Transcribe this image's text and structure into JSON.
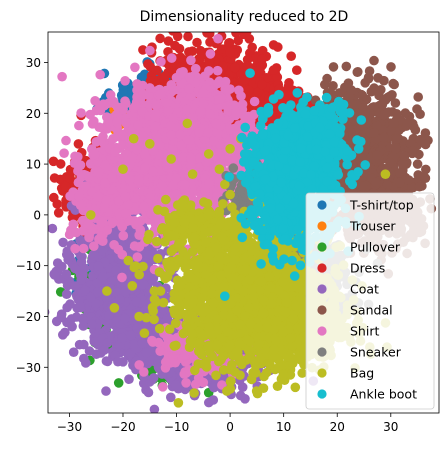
{
  "chart_data": {
    "type": "scatter",
    "title": "Dimensionality reduced to 2D",
    "xlabel": "",
    "ylabel": "",
    "xlim": [
      -34,
      39
    ],
    "ylim": [
      -39,
      36
    ],
    "x_ticks": [
      -30,
      -20,
      -10,
      0,
      10,
      20,
      30
    ],
    "y_ticks": [
      30,
      20,
      10,
      0,
      -10,
      -20,
      -30
    ],
    "x_tick_labels": [
      "−30",
      "−20",
      "−10",
      "0",
      "10",
      "20",
      "30"
    ],
    "y_tick_labels": [
      "30",
      "20",
      "10",
      "0",
      "−10",
      "−20",
      "−30"
    ],
    "grid": false,
    "legend_position": "lower-right",
    "series": [
      {
        "name": "T-shirt/top",
        "color": "#1f77b4",
        "clusters": [
          {
            "cx": -15,
            "cy": 22,
            "sx": 3.5,
            "sy": 3.0,
            "n": 300
          },
          {
            "cx": -21,
            "cy": -12,
            "sx": 3.0,
            "sy": 4.0,
            "n": 140
          }
        ],
        "points": [
          [
            -15,
            26
          ],
          [
            -12,
            25
          ],
          [
            -20,
            -16
          ],
          [
            -24,
            -14
          ]
        ]
      },
      {
        "name": "Trouser",
        "color": "#ff7f0e",
        "clusters": [
          {
            "cx": -10,
            "cy": 2,
            "sx": 1.5,
            "sy": 1.2,
            "n": 25
          },
          {
            "cx": -20,
            "cy": 18,
            "sx": 1.2,
            "sy": 1.2,
            "n": 10
          }
        ],
        "points": [
          [
            -10,
            2
          ],
          [
            -8,
            3
          ],
          [
            -20,
            18
          ]
        ]
      },
      {
        "name": "Pullover",
        "color": "#2ca02c",
        "clusters": [
          {
            "cx": -20,
            "cy": -15,
            "sx": 4.0,
            "sy": 5.5,
            "n": 250
          },
          {
            "cx": -11,
            "cy": -29,
            "sx": 3.0,
            "sy": 2.5,
            "n": 80
          }
        ],
        "points": [
          [
            -28,
            -12
          ],
          [
            -25,
            -11
          ],
          [
            -19,
            -27
          ],
          [
            -4,
            -35
          ],
          [
            0,
            -35
          ]
        ]
      },
      {
        "name": "Dress",
        "color": "#d62728",
        "clusters": [
          {
            "cx": -3,
            "cy": 24,
            "sx": 6.0,
            "sy": 5.0,
            "n": 700
          },
          {
            "cx": -27,
            "cy": 5,
            "sx": 2.2,
            "sy": 3.5,
            "n": 220
          },
          {
            "cx": 6,
            "cy": 21,
            "sx": 5.0,
            "sy": 3.5,
            "n": 250
          }
        ],
        "points": [
          [
            -28,
            11
          ],
          [
            -29,
            2
          ],
          [
            -24,
            13
          ],
          [
            11,
            26
          ],
          [
            0,
            32
          ],
          [
            -4,
            30
          ]
        ]
      },
      {
        "name": "Coat",
        "color": "#9467bd",
        "clusters": [
          {
            "cx": -21,
            "cy": -12,
            "sx": 4.5,
            "sy": 7.0,
            "n": 750
          },
          {
            "cx": -5,
            "cy": -28,
            "sx": 5.5,
            "sy": 3.5,
            "n": 450
          },
          {
            "cx": -16,
            "cy": -24,
            "sx": 3.5,
            "sy": 3.0,
            "n": 250
          }
        ],
        "points": [
          [
            -29,
            -14
          ],
          [
            -28,
            -18
          ],
          [
            -3,
            -34
          ],
          [
            -13,
            -30
          ],
          [
            -8,
            -32
          ]
        ]
      },
      {
        "name": "Sandal",
        "color": "#8c564b",
        "clusters": [
          {
            "cx": 25,
            "cy": 14,
            "sx": 4.5,
            "sy": 5.5,
            "n": 700
          },
          {
            "cx": 28,
            "cy": 2,
            "sx": 4.0,
            "sy": 4.0,
            "n": 350
          }
        ],
        "points": [
          [
            33,
            18
          ],
          [
            35,
            10
          ],
          [
            26,
            20
          ],
          [
            30,
            8
          ],
          [
            32,
            3
          ]
        ]
      },
      {
        "name": "Shirt",
        "color": "#e377c2",
        "clusters": [
          {
            "cx": -12,
            "cy": 10,
            "sx": 6.5,
            "sy": 7.0,
            "n": 1500
          },
          {
            "cx": -5,
            "cy": 20,
            "sx": 4.0,
            "sy": 3.5,
            "n": 300
          },
          {
            "cx": -6,
            "cy": -27,
            "sx": 4.5,
            "sy": 2.5,
            "n": 200
          },
          {
            "cx": -24,
            "cy": 2,
            "sx": 2.5,
            "sy": 3.5,
            "n": 150
          },
          {
            "cx": 4,
            "cy": 10,
            "sx": 3.0,
            "sy": 4.0,
            "n": 150
          }
        ],
        "points": [
          [
            -15,
            25
          ],
          [
            -10,
            27
          ],
          [
            -5,
            24
          ],
          [
            -12,
            -29
          ],
          [
            -5,
            -33
          ],
          [
            -25,
            0
          ]
        ]
      },
      {
        "name": "Sneaker",
        "color": "#7f7f7f",
        "clusters": [
          {
            "cx": 15,
            "cy": -12,
            "sx": 4.0,
            "sy": 3.5,
            "n": 300
          },
          {
            "cx": 4,
            "cy": 4,
            "sx": 2.0,
            "sy": 2.5,
            "n": 100
          }
        ],
        "points": [
          [
            18,
            -10
          ],
          [
            14,
            -18
          ],
          [
            20,
            -14
          ]
        ]
      },
      {
        "name": "Bag",
        "color": "#bcbd22",
        "clusters": [
          {
            "cx": 3,
            "cy": -16,
            "sx": 7.0,
            "sy": 6.5,
            "n": 1600
          },
          {
            "cx": -8,
            "cy": -2,
            "sx": 3.0,
            "sy": 2.5,
            "n": 120
          },
          {
            "cx": 14,
            "cy": -22,
            "sx": 4.0,
            "sy": 3.5,
            "n": 350
          }
        ],
        "points": [
          [
            -12,
            3
          ],
          [
            -20,
            9
          ],
          [
            -15,
            14
          ],
          [
            -4,
            12
          ],
          [
            -2,
            9
          ],
          [
            2,
            15
          ],
          [
            -18,
            15
          ],
          [
            29,
            8
          ],
          [
            -13,
            -15
          ],
          [
            -17,
            -20
          ],
          [
            -23,
            -15
          ],
          [
            -19,
            -9
          ],
          [
            -11,
            -10
          ],
          [
            0,
            4
          ],
          [
            6,
            15
          ],
          [
            -1,
            6
          ],
          [
            -7,
            8
          ],
          [
            -26,
            0
          ],
          [
            -8,
            18
          ],
          [
            0,
            13
          ],
          [
            -11,
            11
          ]
        ]
      },
      {
        "name": "Ankle boot",
        "color": "#17becf",
        "clusters": [
          {
            "cx": 12,
            "cy": 7,
            "sx": 4.0,
            "sy": 6.0,
            "n": 1100
          },
          {
            "cx": 16,
            "cy": 15,
            "sx": 3.0,
            "sy": 3.0,
            "n": 250
          }
        ],
        "points": [
          [
            24,
            13
          ],
          [
            14,
            -7
          ],
          [
            -1,
            -16
          ],
          [
            19,
            21
          ],
          [
            9,
            18
          ]
        ]
      }
    ]
  }
}
